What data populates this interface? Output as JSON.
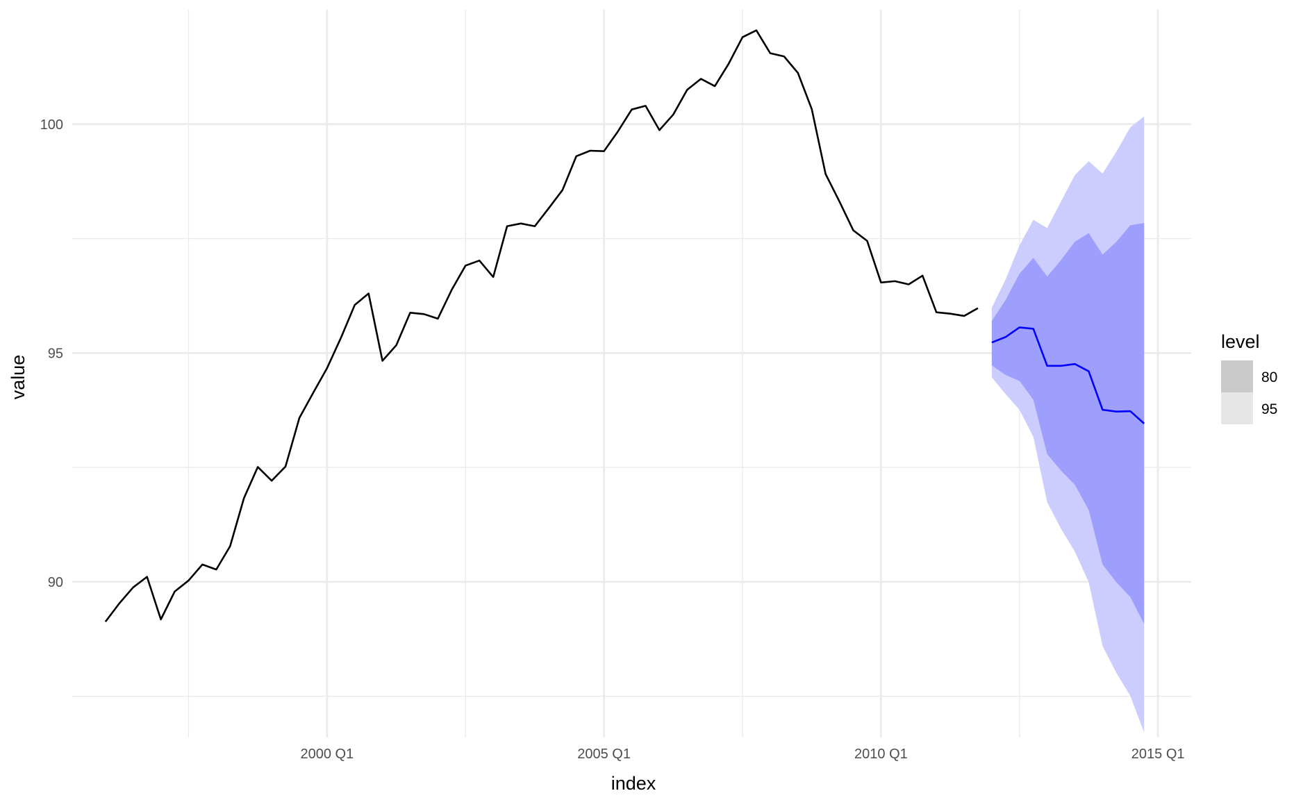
{
  "chart_data": {
    "type": "line",
    "xlabel": "index",
    "ylabel": "value",
    "x_ticks": [
      {
        "label": "2000 Q1",
        "value": 2000.0
      },
      {
        "label": "2005 Q1",
        "value": 2005.0
      },
      {
        "label": "2010 Q1",
        "value": 2010.0
      },
      {
        "label": "2015 Q1",
        "value": 2015.0
      }
    ],
    "y_ticks": [
      90,
      95,
      100
    ],
    "xlim": [
      1995.4,
      2015.6
    ],
    "ylim": [
      86.6,
      102.5
    ],
    "grid": true,
    "legend": {
      "title": "level",
      "position": "right",
      "entries": [
        {
          "label": "80",
          "color": "#cacaca"
        },
        {
          "label": "95",
          "color": "#e6e6e6"
        }
      ]
    },
    "colors": {
      "history": "#000000",
      "forecast": "#0000ff",
      "band95": "#ccccff",
      "band80": "#9e9efd",
      "grid": "#ebebeb"
    },
    "series": [
      {
        "start": 1996.0,
        "step": 0.25,
        "values": [
          89.13,
          89.53,
          89.88,
          90.11,
          89.18,
          89.79,
          90.03,
          90.38,
          90.27,
          90.78,
          91.83,
          92.51,
          92.21,
          92.52,
          93.58,
          94.13,
          94.67,
          95.33,
          96.05,
          96.3,
          94.83,
          95.17,
          95.88,
          95.85,
          95.75,
          96.38,
          96.91,
          97.02,
          96.66,
          97.77,
          97.83,
          97.77,
          98.16,
          98.56,
          99.3,
          99.42,
          99.41,
          99.84,
          100.32,
          100.4,
          99.87,
          100.21,
          100.75,
          100.99,
          100.83,
          101.32,
          101.9,
          102.05,
          101.55,
          101.48,
          101.12,
          100.33,
          98.91,
          98.31,
          97.68,
          97.45,
          96.54,
          96.57,
          96.5,
          96.69,
          95.89,
          95.86,
          95.81,
          95.98
        ]
      },
      {
        "start": 2012.0,
        "step": 0.25,
        "mean": [
          95.23,
          95.35,
          95.56,
          95.53,
          94.72,
          94.72,
          94.76,
          94.6,
          93.76,
          93.72,
          93.73,
          93.46
        ],
        "lo80": [
          94.73,
          94.52,
          94.39,
          93.98,
          92.79,
          92.43,
          92.12,
          91.57,
          90.38,
          89.99,
          89.67,
          89.08
        ],
        "hi80": [
          95.7,
          96.16,
          96.73,
          97.08,
          96.67,
          97.03,
          97.43,
          97.62,
          97.15,
          97.43,
          97.79,
          97.84
        ],
        "lo95": [
          94.47,
          94.1,
          93.76,
          93.17,
          91.74,
          91.16,
          90.66,
          89.99,
          88.6,
          88.01,
          87.51,
          86.71
        ],
        "hi95": [
          95.99,
          96.61,
          97.35,
          97.91,
          97.73,
          98.31,
          98.89,
          99.19,
          98.92,
          99.4,
          99.93,
          100.17
        ]
      }
    ]
  }
}
